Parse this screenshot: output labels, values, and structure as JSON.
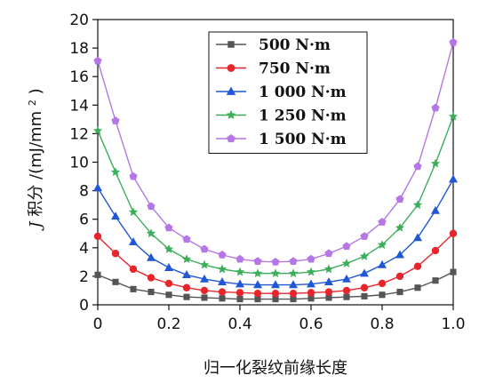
{
  "chart_data": {
    "type": "line",
    "title": "",
    "xlabel": "归一化裂纹前缘长度",
    "ylabel_prefix": "J",
    "ylabel_main": "积分 /(mJ/mm",
    "ylabel_sup": "2",
    "ylabel_suffix": ")",
    "xlim": [
      0,
      1.0
    ],
    "ylim": [
      0,
      20
    ],
    "xticks": [
      0,
      0.2,
      0.4,
      0.6,
      0.8,
      1.0
    ],
    "xtick_labels": [
      "0",
      "0.2",
      "0.4",
      "0.6",
      "0.8",
      "1.0"
    ],
    "yticks": [
      0,
      2,
      4,
      6,
      8,
      10,
      12,
      14,
      16,
      18,
      20
    ],
    "ytick_labels": [
      "0",
      "2",
      "4",
      "6",
      "8",
      "10",
      "12",
      "14",
      "16",
      "18",
      "20"
    ],
    "grid": false,
    "legend_position": "top-right",
    "x": [
      0,
      0.05,
      0.1,
      0.15,
      0.2,
      0.25,
      0.3,
      0.35,
      0.4,
      0.45,
      0.5,
      0.55,
      0.6,
      0.65,
      0.7,
      0.75,
      0.8,
      0.85,
      0.9,
      0.95,
      1.0
    ],
    "series": [
      {
        "name": "500 N·m",
        "color": "#555555",
        "marker": "square",
        "values": [
          2.1,
          1.6,
          1.1,
          0.9,
          0.7,
          0.55,
          0.5,
          0.45,
          0.4,
          0.4,
          0.4,
          0.4,
          0.45,
          0.5,
          0.55,
          0.6,
          0.7,
          0.9,
          1.2,
          1.7,
          2.3
        ]
      },
      {
        "name": "750 N·m",
        "color": "#e8252a",
        "marker": "circle",
        "values": [
          4.8,
          3.6,
          2.5,
          1.9,
          1.5,
          1.2,
          1.0,
          0.9,
          0.85,
          0.8,
          0.8,
          0.8,
          0.85,
          0.9,
          1.0,
          1.2,
          1.5,
          2.0,
          2.7,
          3.8,
          5.0
        ]
      },
      {
        "name": "1 000 N·m",
        "color": "#1f57d6",
        "marker": "triangle",
        "values": [
          8.2,
          6.2,
          4.4,
          3.3,
          2.6,
          2.1,
          1.8,
          1.6,
          1.45,
          1.4,
          1.4,
          1.4,
          1.45,
          1.6,
          1.8,
          2.2,
          2.8,
          3.5,
          4.7,
          6.6,
          8.8
        ]
      },
      {
        "name": "1 250 N·m",
        "color": "#3cae5a",
        "marker": "star",
        "values": [
          12.2,
          9.3,
          6.5,
          5.0,
          3.9,
          3.2,
          2.8,
          2.5,
          2.3,
          2.2,
          2.2,
          2.2,
          2.3,
          2.5,
          2.9,
          3.4,
          4.2,
          5.4,
          7.0,
          9.9,
          13.2
        ]
      },
      {
        "name": "1 500 N·m",
        "color": "#b576e6",
        "marker": "pentagon",
        "values": [
          17.1,
          12.9,
          9.0,
          6.9,
          5.4,
          4.6,
          3.9,
          3.5,
          3.2,
          3.05,
          3.0,
          3.05,
          3.2,
          3.6,
          4.1,
          4.8,
          5.8,
          7.4,
          9.7,
          13.8,
          18.4
        ]
      }
    ]
  }
}
